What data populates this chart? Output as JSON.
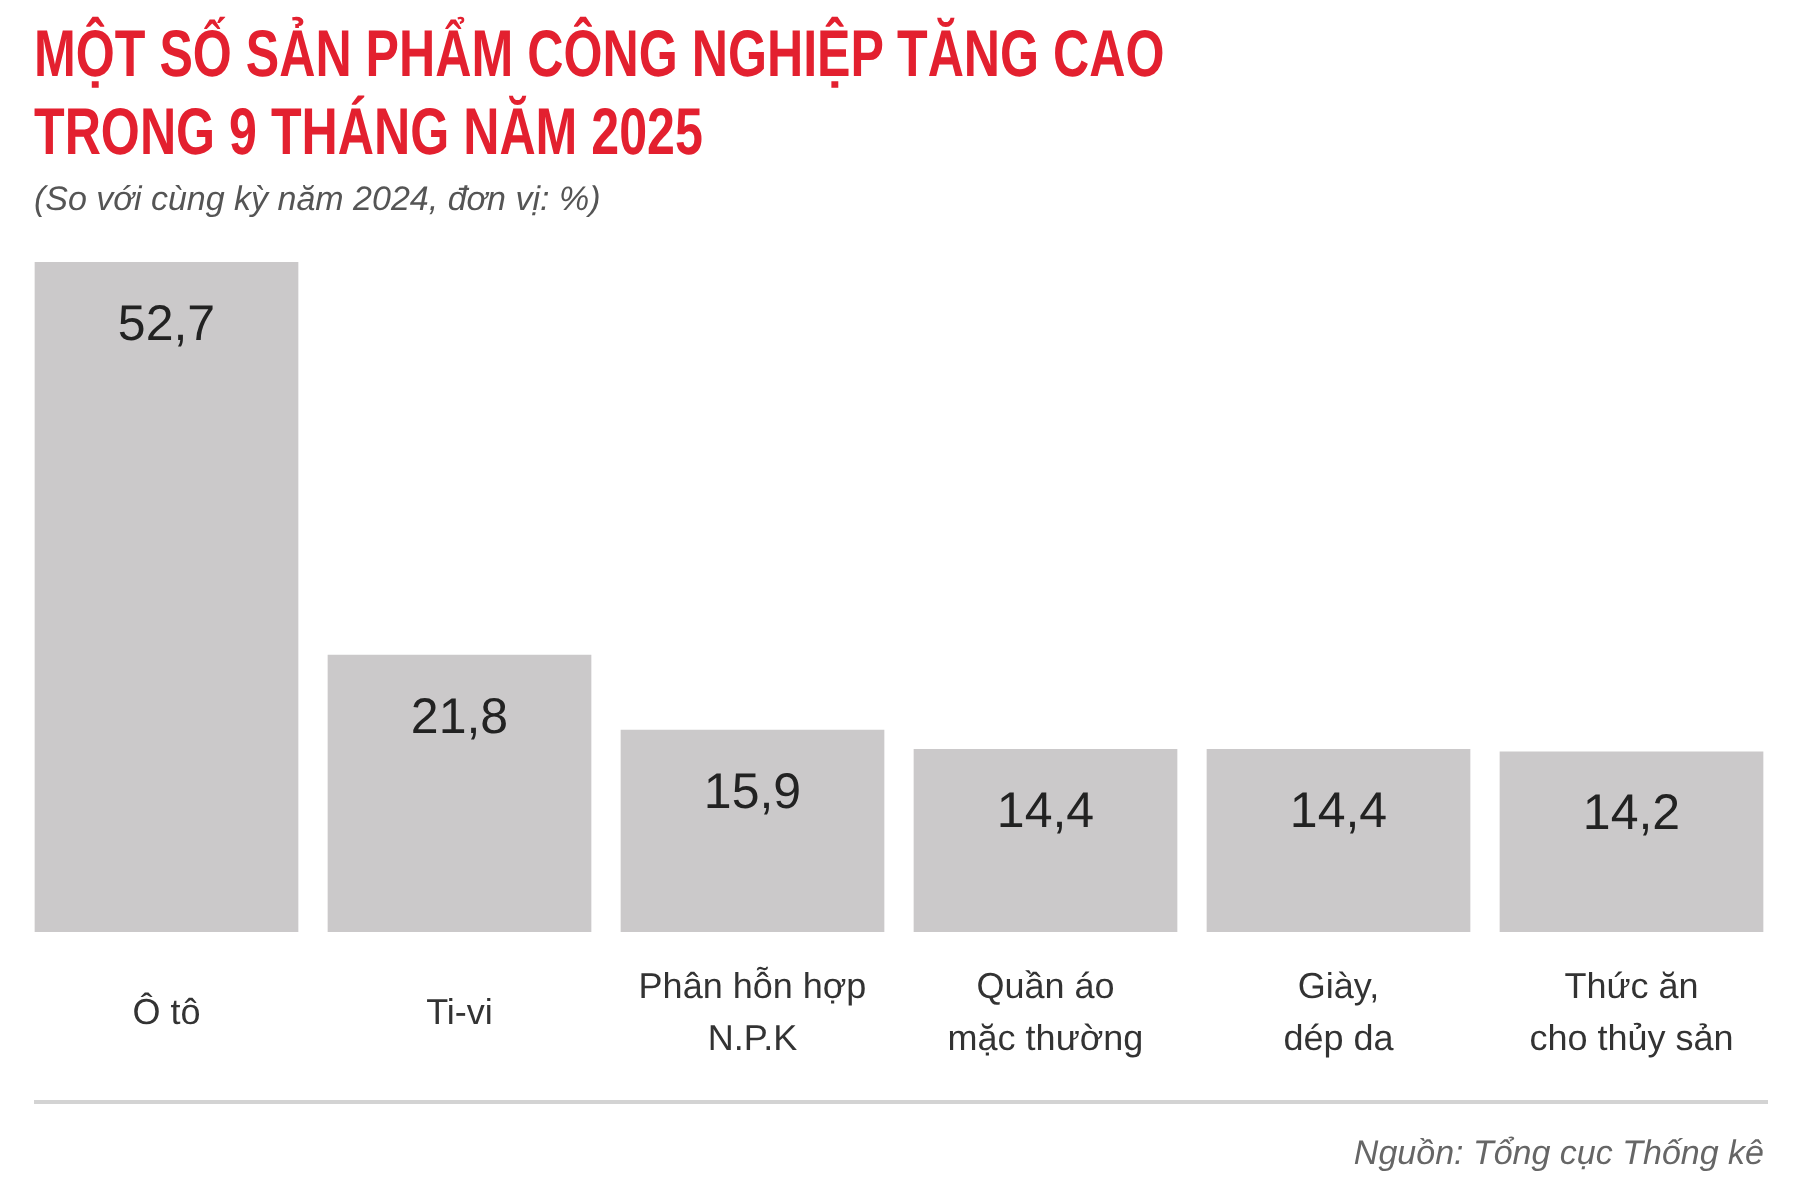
{
  "chart_data": {
    "type": "bar",
    "title": "MỘT SỐ SẢN PHẨM CÔNG NGHIỆP TĂNG CAO\nTRONG 9 THÁNG NĂM 2025",
    "subtitle": "(So với cùng kỳ năm 2024, đơn vị: %)",
    "categories": [
      "Ô tô",
      "Ti-vi",
      "Phân hỗn hợp\nN.P.K",
      "Quần áo\nmặc thường",
      "Giày,\ndép da",
      "Thức ăn\ncho thủy sản"
    ],
    "values": [
      52.7,
      21.8,
      15.9,
      14.4,
      14.4,
      14.2
    ],
    "value_labels": [
      "52,7",
      "21,8",
      "15,9",
      "14,4",
      "14,4",
      "14,2"
    ],
    "color": "#cbc9ca",
    "annotations": [
      "Nguồn: Tổng cục Thống kê"
    ]
  }
}
